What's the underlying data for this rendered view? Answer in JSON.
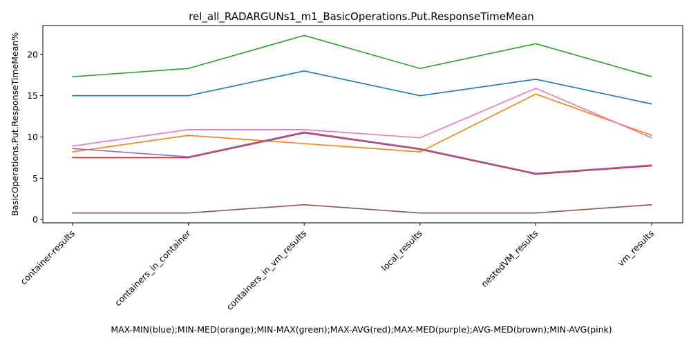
{
  "chart_data": {
    "type": "line",
    "title": "rel_all_RADARGUNs1_m1_BasicOperations.Put.ResponseTimeMean",
    "xlabel": "MAX-MIN(blue);MIN-MED(orange);MIN-MAX(green);MAX-AVG(red);MAX-MED(purple);AVG-MED(brown);MIN-AVG(pink)",
    "ylabel": "BasicOperations.Put.ResponseTimeMean%",
    "categories": [
      "container-results",
      "containers_in_container",
      "containers_in_vm_results",
      "local_results",
      "nestedVM_results",
      "vm_results"
    ],
    "yticks": [
      0,
      5,
      10,
      15,
      20
    ],
    "ylim": [
      -0.4,
      23.5
    ],
    "grid": false,
    "series": [
      {
        "color": "#1f77b4",
        "values": [
          15.0,
          15.0,
          18.0,
          15.0,
          17.0,
          14.0
        ]
      },
      {
        "color": "#ff7f0e",
        "values": [
          8.2,
          10.2,
          9.2,
          8.2,
          15.2,
          10.2
        ]
      },
      {
        "color": "#2ca02c",
        "values": [
          17.3,
          18.3,
          22.3,
          18.3,
          21.3,
          17.3
        ]
      },
      {
        "color": "#d62728",
        "values": [
          7.5,
          7.5,
          10.5,
          8.5,
          5.5,
          6.5
        ]
      },
      {
        "color": "#9467bd",
        "values": [
          8.6,
          7.6,
          10.6,
          8.6,
          5.6,
          6.6
        ]
      },
      {
        "color": "#8c564b",
        "values": [
          0.8,
          0.8,
          1.8,
          0.8,
          0.8,
          1.8
        ]
      },
      {
        "color": "#e377c2",
        "values": [
          8.9,
          10.9,
          10.9,
          9.9,
          15.9,
          9.9
        ]
      }
    ]
  }
}
